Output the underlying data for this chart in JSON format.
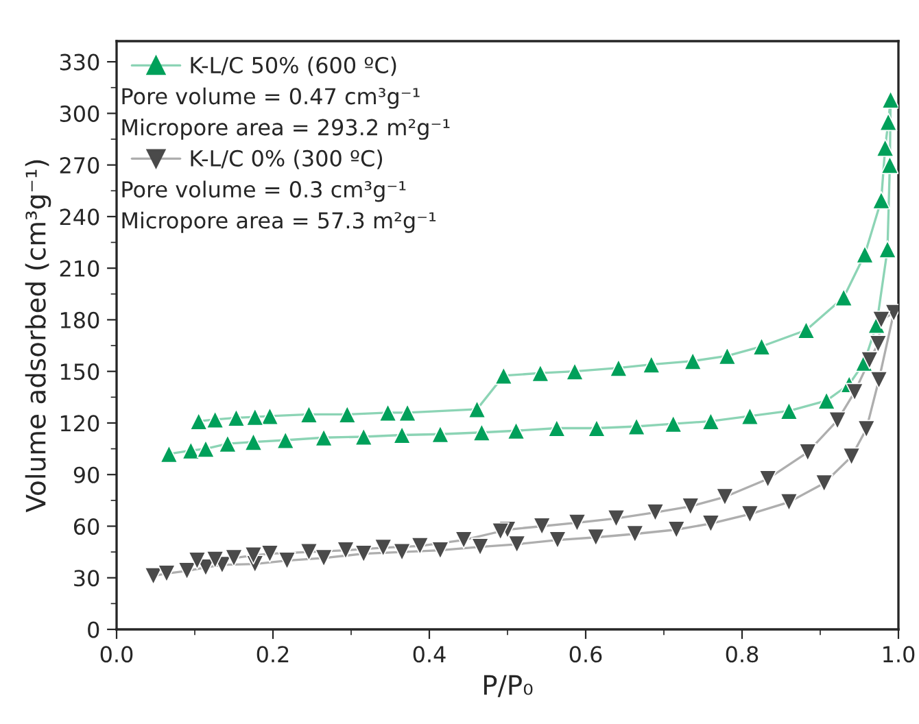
{
  "chart_data": {
    "type": "line",
    "xlabel": "P/P₀",
    "ylabel": "Volume adsorbed (cm³g⁻¹)",
    "xlim": [
      0.0,
      1.0
    ],
    "xticks": [
      {
        "value": 0,
        "label": "0.0"
      },
      0.2,
      0.4,
      0.6,
      0.8,
      {
        "value": 1,
        "label": "1.0"
      }
    ],
    "ylim": [
      0,
      342
    ],
    "yticks": [
      0,
      30,
      60,
      90,
      120,
      150,
      180,
      210,
      240,
      270,
      300,
      330
    ],
    "line_style": "solid",
    "legend": "top left",
    "grid": false,
    "annotations": [
      "Pore volume = 0.47 cm³g⁻¹",
      "Micropore area = 293.2 m²g⁻¹",
      "Pore volume = 0.3 cm³g⁻¹",
      "Micropore area = 57.3 m²g⁻¹"
    ],
    "series": [
      {
        "name": "K-L/C 50% (600 ºC)",
        "color": "#00a05a",
        "marker": "triangle",
        "x": [
          0.067,
          0.095,
          0.114,
          0.142,
          0.175,
          0.216,
          0.265,
          0.316,
          0.365,
          0.414,
          0.467,
          0.511,
          0.563,
          0.614,
          0.665,
          0.712,
          0.76,
          0.81,
          0.86,
          0.908,
          0.937,
          0.956,
          0.972,
          0.986,
          0.989,
          0.99,
          0.987,
          0.983,
          0.978,
          0.957,
          0.93,
          0.882,
          0.825,
          0.781,
          0.737,
          0.684,
          0.642,
          0.586,
          0.542,
          0.495,
          0.461,
          0.372,
          0.347,
          0.295,
          0.246,
          0.196,
          0.177,
          0.153,
          0.126,
          0.105
        ],
        "values": [
          102,
          104,
          105,
          108,
          109,
          110,
          111.5,
          112,
          113,
          113.5,
          114.5,
          115.5,
          117,
          117,
          118,
          119.5,
          121,
          124,
          127,
          133,
          142.5,
          155,
          177,
          221,
          270,
          308,
          295,
          280,
          249.5,
          218,
          193,
          174,
          164.5,
          159,
          156,
          154,
          152,
          150,
          149,
          147.5,
          128,
          126,
          126,
          125,
          125,
          124,
          123.5,
          123,
          122,
          121
        ]
      },
      {
        "name": "K-L/C 0% (300 ºC)",
        "color": "#4a4a4a",
        "marker": "triangle_down",
        "x": [
          0.047,
          0.064,
          0.09,
          0.114,
          0.135,
          0.177,
          0.218,
          0.265,
          0.316,
          0.365,
          0.414,
          0.465,
          0.512,
          0.564,
          0.613,
          0.663,
          0.716,
          0.76,
          0.81,
          0.86,
          0.905,
          0.94,
          0.959,
          0.975,
          0.994,
          0.978,
          0.974,
          0.963,
          0.944,
          0.922,
          0.884,
          0.833,
          0.778,
          0.734,
          0.689,
          0.639,
          0.589,
          0.544,
          0.5,
          0.491,
          0.444,
          0.388,
          0.341,
          0.293,
          0.246,
          0.196,
          0.175,
          0.15,
          0.126,
          0.103
        ],
        "values": [
          31,
          32.5,
          34,
          36,
          37.5,
          38,
          40,
          41.5,
          44,
          45,
          46,
          48,
          49.5,
          52,
          53.5,
          55.5,
          58,
          61.5,
          67,
          74,
          85,
          100.5,
          116.5,
          145,
          184,
          180,
          166,
          156.5,
          138,
          121.5,
          103,
          87.5,
          77,
          71.5,
          68,
          64.5,
          62,
          60,
          58,
          57,
          52,
          48.5,
          47.5,
          46,
          45,
          44,
          43,
          41.5,
          40.5,
          40
        ]
      }
    ]
  }
}
